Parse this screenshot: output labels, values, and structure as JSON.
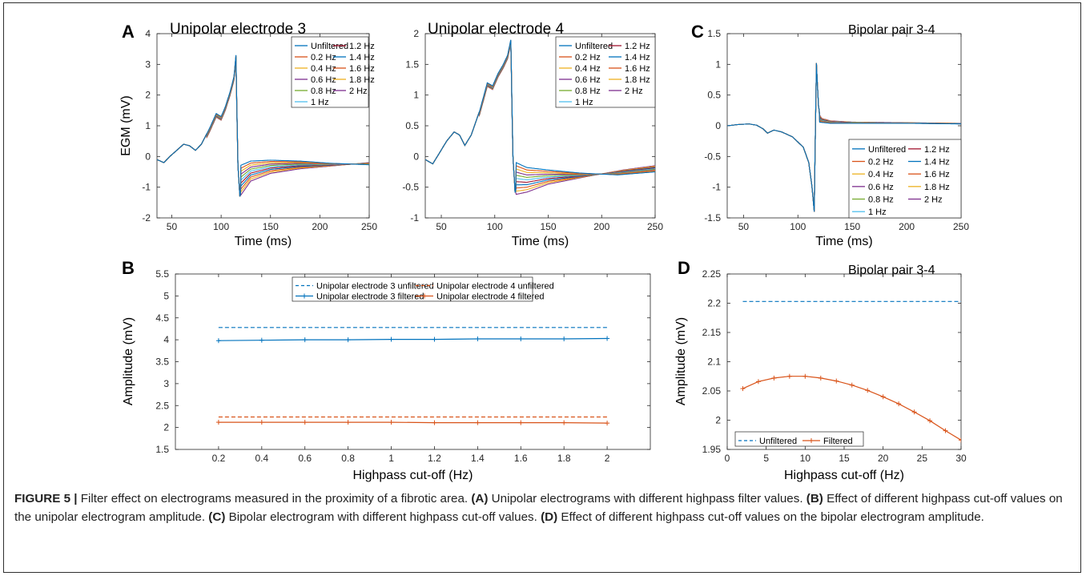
{
  "chart_data": [
    {
      "id": "A1",
      "panel_letter": "A",
      "type": "line",
      "title": "Unipolar electrode 3",
      "xlabel": "Time (ms)",
      "ylabel": "EGM (mV)",
      "xlim": [
        35,
        250
      ],
      "ylim": [
        -2,
        4
      ],
      "xticks": [
        50,
        100,
        150,
        200,
        250
      ],
      "yticks": [
        -2,
        -1,
        0,
        1,
        2,
        3,
        4
      ],
      "legend_position": "top-right",
      "legend_columns": 2,
      "series": [
        {
          "name": "Unfiltered",
          "color": "#0072BD",
          "level": 0
        },
        {
          "name": "0.2 Hz",
          "color": "#D95319",
          "level": 1
        },
        {
          "name": "0.4 Hz",
          "color": "#EDB120",
          "level": 2
        },
        {
          "name": "0.6 Hz",
          "color": "#7E2F8E",
          "level": 3
        },
        {
          "name": "0.8 Hz",
          "color": "#77AC30",
          "level": 4
        },
        {
          "name": "1 Hz",
          "color": "#4DBEEE",
          "level": 5
        },
        {
          "name": "1.2 Hz",
          "color": "#A2142F",
          "level": 6
        },
        {
          "name": "1.4 Hz",
          "color": "#0072BD",
          "level": 7
        },
        {
          "name": "1.6 Hz",
          "color": "#D95319",
          "level": 8
        },
        {
          "name": "1.8 Hz",
          "color": "#EDB120",
          "level": 9
        },
        {
          "name": "2 Hz",
          "color": "#7E2F8E",
          "level": 10
        }
      ],
      "base_waveform": [
        [
          35,
          -0.1
        ],
        [
          42,
          -0.2
        ],
        [
          48,
          0.0
        ],
        [
          55,
          0.2
        ],
        [
          62,
          0.4
        ],
        [
          68,
          0.35
        ],
        [
          74,
          0.2
        ],
        [
          80,
          0.4
        ],
        [
          88,
          0.9
        ],
        [
          95,
          1.4
        ],
        [
          100,
          1.3
        ],
        [
          104,
          1.6
        ],
        [
          109,
          2.1
        ],
        [
          113,
          2.6
        ],
        [
          115,
          3.3
        ],
        [
          117,
          -0.3
        ],
        [
          119,
          -1.3
        ],
        [
          122,
          -0.8
        ],
        [
          130,
          -0.6
        ],
        [
          145,
          -0.5
        ],
        [
          170,
          -0.4
        ],
        [
          200,
          -0.35
        ],
        [
          230,
          -0.3
        ],
        [
          250,
          -0.25
        ]
      ],
      "unfiltered_tail": [
        [
          117,
          -0.3
        ],
        [
          119,
          -0.3
        ],
        [
          130,
          -0.15
        ],
        [
          150,
          -0.12
        ],
        [
          180,
          -0.15
        ],
        [
          210,
          -0.22
        ],
        [
          250,
          -0.27
        ]
      ],
      "filtered_tail": [
        [
          117,
          -0.3
        ],
        [
          119,
          -1.3
        ],
        [
          130,
          -0.8
        ],
        [
          150,
          -0.55
        ],
        [
          180,
          -0.4
        ],
        [
          215,
          -0.3
        ],
        [
          250,
          -0.2
        ]
      ]
    },
    {
      "id": "A2",
      "panel_letter": "",
      "type": "line",
      "title": "Unipolar electrode 4",
      "xlabel": "Time (ms)",
      "ylabel": "",
      "xlim": [
        35,
        250
      ],
      "ylim": [
        -1,
        2
      ],
      "xticks": [
        50,
        100,
        150,
        200,
        250
      ],
      "yticks": [
        -1,
        -0.5,
        0,
        0.5,
        1,
        1.5,
        2
      ],
      "legend_position": "top-right",
      "legend_columns": 2,
      "series": [
        {
          "name": "Unfiltered",
          "color": "#0072BD",
          "level": 0
        },
        {
          "name": "0.2 Hz",
          "color": "#D95319",
          "level": 1
        },
        {
          "name": "0.4 Hz",
          "color": "#EDB120",
          "level": 2
        },
        {
          "name": "0.6 Hz",
          "color": "#7E2F8E",
          "level": 3
        },
        {
          "name": "0.8 Hz",
          "color": "#77AC30",
          "level": 4
        },
        {
          "name": "1 Hz",
          "color": "#4DBEEE",
          "level": 5
        },
        {
          "name": "1.2 Hz",
          "color": "#A2142F",
          "level": 6
        },
        {
          "name": "1.4 Hz",
          "color": "#0072BD",
          "level": 7
        },
        {
          "name": "1.6 Hz",
          "color": "#D95319",
          "level": 8
        },
        {
          "name": "1.8 Hz",
          "color": "#EDB120",
          "level": 9
        },
        {
          "name": "2 Hz",
          "color": "#7E2F8E",
          "level": 10
        }
      ],
      "base_waveform": [
        [
          35,
          -0.05
        ],
        [
          42,
          -0.12
        ],
        [
          48,
          0.05
        ],
        [
          55,
          0.25
        ],
        [
          62,
          0.4
        ],
        [
          67,
          0.35
        ],
        [
          72,
          0.18
        ],
        [
          78,
          0.35
        ],
        [
          86,
          0.75
        ],
        [
          93,
          1.2
        ],
        [
          98,
          1.15
        ],
        [
          103,
          1.35
        ],
        [
          108,
          1.5
        ],
        [
          112,
          1.65
        ],
        [
          115,
          1.9
        ],
        [
          117,
          0.0
        ],
        [
          119,
          -0.58
        ],
        [
          125,
          -0.55
        ],
        [
          135,
          -0.45
        ],
        [
          160,
          -0.38
        ],
        [
          200,
          -0.3
        ],
        [
          250,
          -0.2
        ]
      ],
      "unfiltered_tail": [
        [
          117,
          -0.15
        ],
        [
          120,
          -0.1
        ],
        [
          130,
          -0.18
        ],
        [
          150,
          -0.22
        ],
        [
          180,
          -0.27
        ],
        [
          215,
          -0.3
        ],
        [
          250,
          -0.25
        ]
      ],
      "filtered_tail": [
        [
          117,
          -0.2
        ],
        [
          119,
          -0.62
        ],
        [
          130,
          -0.58
        ],
        [
          150,
          -0.45
        ],
        [
          185,
          -0.33
        ],
        [
          220,
          -0.22
        ],
        [
          250,
          -0.15
        ]
      ]
    },
    {
      "id": "C",
      "panel_letter": "C",
      "type": "line",
      "title": "Bipolar pair 3-4",
      "xlabel": "Time (ms)",
      "ylabel": "",
      "xlim": [
        35,
        250
      ],
      "ylim": [
        -1.5,
        1.5
      ],
      "xticks": [
        50,
        100,
        150,
        200,
        250
      ],
      "yticks": [
        -1.5,
        -1,
        -0.5,
        0,
        0.5,
        1,
        1.5
      ],
      "legend_position": "bottom-right",
      "legend_columns": 2,
      "series": [
        {
          "name": "Unfiltered",
          "color": "#0072BD",
          "level": 0
        },
        {
          "name": "0.2 Hz",
          "color": "#D95319",
          "level": 1
        },
        {
          "name": "0.4 Hz",
          "color": "#EDB120",
          "level": 2
        },
        {
          "name": "0.6 Hz",
          "color": "#7E2F8E",
          "level": 3
        },
        {
          "name": "0.8 Hz",
          "color": "#77AC30",
          "level": 4
        },
        {
          "name": "1 Hz",
          "color": "#4DBEEE",
          "level": 5
        },
        {
          "name": "1.2 Hz",
          "color": "#A2142F",
          "level": 6
        },
        {
          "name": "1.4 Hz",
          "color": "#0072BD",
          "level": 7
        },
        {
          "name": "1.6 Hz",
          "color": "#D95319",
          "level": 8
        },
        {
          "name": "1.8 Hz",
          "color": "#EDB120",
          "level": 9
        },
        {
          "name": "2 Hz",
          "color": "#7E2F8E",
          "level": 10
        }
      ],
      "base_waveform": [
        [
          35,
          0.0
        ],
        [
          45,
          0.02
        ],
        [
          55,
          0.03
        ],
        [
          62,
          0.01
        ],
        [
          68,
          -0.05
        ],
        [
          72,
          -0.12
        ],
        [
          78,
          -0.07
        ],
        [
          85,
          -0.1
        ],
        [
          95,
          -0.18
        ],
        [
          105,
          -0.35
        ],
        [
          110,
          -0.6
        ],
        [
          113,
          -1.0
        ],
        [
          115,
          -1.4
        ],
        [
          117,
          1.02
        ],
        [
          119,
          0.3
        ],
        [
          122,
          0.1
        ],
        [
          130,
          0.07
        ],
        [
          150,
          0.05
        ],
        [
          200,
          0.05
        ],
        [
          250,
          0.04
        ]
      ],
      "unfiltered_tail": [
        [
          117,
          0.05
        ],
        [
          119,
          0.06
        ],
        [
          130,
          0.04
        ],
        [
          200,
          0.04
        ],
        [
          250,
          0.03
        ]
      ],
      "filtered_tail": [
        [
          117,
          0.05
        ],
        [
          119,
          0.2
        ],
        [
          122,
          0.12
        ],
        [
          130,
          0.08
        ],
        [
          150,
          0.06
        ],
        [
          200,
          0.05
        ],
        [
          250,
          0.04
        ]
      ]
    },
    {
      "id": "B",
      "panel_letter": "B",
      "type": "line",
      "title": "",
      "xlabel": "Highpass cut-off (Hz)",
      "ylabel": "Amplitude (mV)",
      "xlim": [
        0,
        2.2
      ],
      "ylim": [
        1.5,
        5.5
      ],
      "xticks": [
        0.2,
        0.4,
        0.6,
        0.8,
        1,
        1.2,
        1.4,
        1.6,
        1.8,
        2
      ],
      "yticks": [
        1.5,
        2,
        2.5,
        3,
        3.5,
        4,
        4.5,
        5,
        5.5
      ],
      "legend_position": "top",
      "legend_columns": 2,
      "series": [
        {
          "name": "Unipolar electrode 3 unfiltered",
          "color": "#0072BD",
          "style": "dashed",
          "x": [
            0.2,
            2
          ],
          "y": [
            4.28,
            4.28
          ]
        },
        {
          "name": "Unipolar electrode 3 filtered",
          "color": "#0072BD",
          "style": "solid-marker",
          "x": [
            0.2,
            0.4,
            0.6,
            0.8,
            1,
            1.2,
            1.4,
            1.6,
            1.8,
            2
          ],
          "y": [
            3.98,
            3.99,
            4.0,
            4.0,
            4.01,
            4.01,
            4.02,
            4.02,
            4.02,
            4.03
          ]
        },
        {
          "name": "Unipolar electrode 4 unfiltered",
          "color": "#D95319",
          "style": "dashed",
          "x": [
            0.2,
            2
          ],
          "y": [
            2.24,
            2.24
          ]
        },
        {
          "name": "Unipolar electrode 4 filtered",
          "color": "#D95319",
          "style": "solid-marker",
          "x": [
            0.2,
            0.4,
            0.6,
            0.8,
            1,
            1.2,
            1.4,
            1.6,
            1.8,
            2
          ],
          "y": [
            2.12,
            2.12,
            2.12,
            2.12,
            2.12,
            2.11,
            2.11,
            2.11,
            2.11,
            2.1
          ]
        }
      ]
    },
    {
      "id": "D",
      "panel_letter": "D",
      "type": "line",
      "title": "Bipolar pair 3-4",
      "xlabel": "Highpass cut-off (Hz)",
      "ylabel": "Amplitude (mV)",
      "xlim": [
        0,
        30
      ],
      "ylim": [
        1.95,
        2.25
      ],
      "xticks": [
        0,
        5,
        10,
        15,
        20,
        25,
        30
      ],
      "yticks": [
        1.95,
        2,
        2.05,
        2.1,
        2.15,
        2.2,
        2.25
      ],
      "legend_position": "bottom-left",
      "legend_columns": 2,
      "series": [
        {
          "name": "Unfiltered",
          "color": "#0072BD",
          "style": "dashed",
          "x": [
            2,
            30
          ],
          "y": [
            2.203,
            2.203
          ]
        },
        {
          "name": "Filtered",
          "color": "#D95319",
          "style": "solid-marker",
          "x": [
            2,
            4,
            6,
            8,
            10,
            12,
            14,
            16,
            18,
            20,
            22,
            24,
            26,
            28,
            30
          ],
          "y": [
            2.054,
            2.066,
            2.072,
            2.075,
            2.075,
            2.072,
            2.067,
            2.06,
            2.051,
            2.04,
            2.028,
            2.014,
            1.999,
            1.982,
            1.966
          ]
        }
      ]
    }
  ],
  "caption": {
    "label": "FIGURE 5 |",
    "intro": " Filter effect on electrograms measured in the proximity of a fibrotic area. ",
    "a_tag": "(A)",
    "a_text": " Unipolar electrograms with different highpass filter values. ",
    "b_tag": "(B)",
    "b_text": " Effect of different highpass cut-off values on the unipolar electrogram amplitude. ",
    "c_tag": "(C)",
    "c_text": " Bipolar electrogram with different highpass cut-off values. ",
    "d_tag": "(D)",
    "d_text": " Effect of different highpass cut-off values on the bipolar electrogram amplitude."
  }
}
